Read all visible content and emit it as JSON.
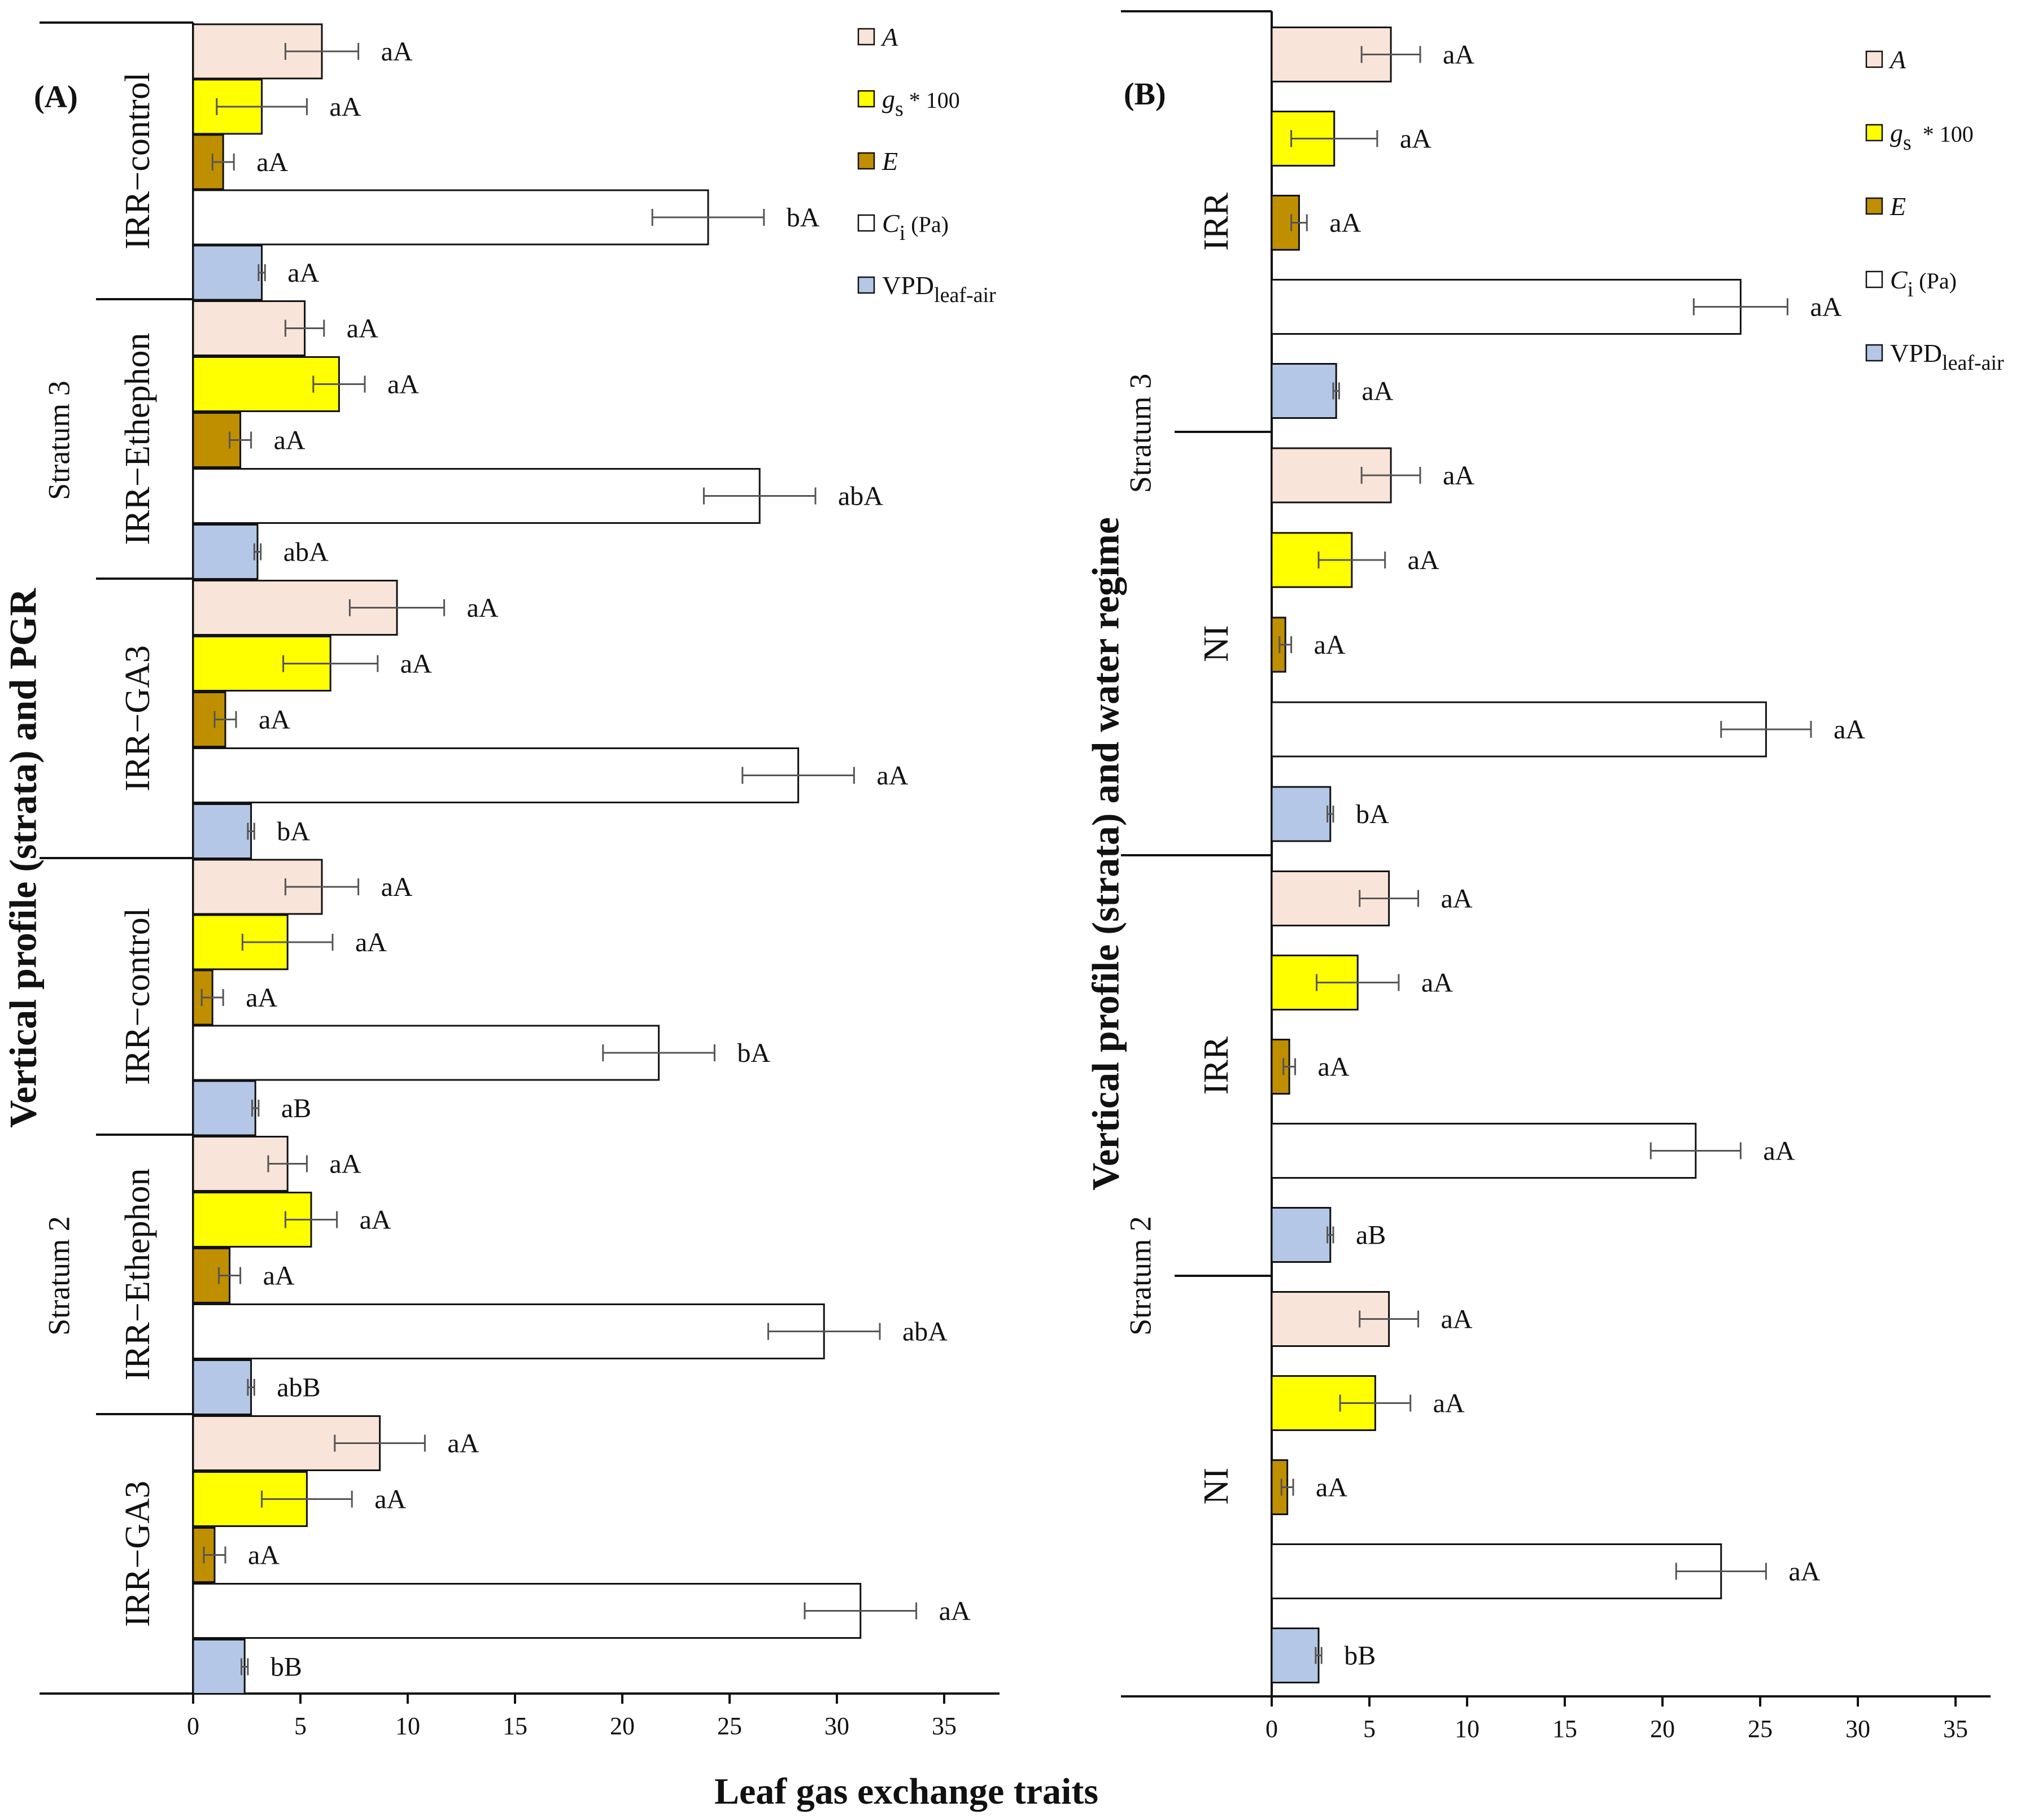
{
  "x_axis_title": "Leaf gas  exchange traits",
  "colors": {
    "A": "#f9e4d9",
    "gs": "#ffff00",
    "E": "#bf8f00",
    "Ci": "#ffffff",
    "VPD": "#b4c7e7",
    "stroke": "#111111",
    "error": "#555555"
  },
  "chart_data": [
    {
      "type": "bar",
      "orientation": "horizontal",
      "panel_label": "(A)",
      "ylabel": "Vertical profile (strata) and PGR",
      "xlabel": "Leaf gas  exchange traits",
      "xlim": [
        0,
        37
      ],
      "xticks": [
        "0",
        "5",
        "10",
        "15",
        "20",
        "25",
        "30",
        "35"
      ],
      "legend": [
        {
          "key": "A",
          "main": "A",
          "sub": ""
        },
        {
          "key": "gs",
          "main": "g",
          "sub": "s",
          "suffix": "* 100"
        },
        {
          "key": "E",
          "main": "E",
          "sub": ""
        },
        {
          "key": "Ci",
          "main": "C",
          "sub": "i",
          "suffix": "(Pa)"
        },
        {
          "key": "VPD",
          "main": "VPD",
          "sub": "leaf-air"
        }
      ],
      "strata": [
        {
          "label": "Stratum 3",
          "groups": 3
        },
        {
          "label": "Stratum 2",
          "groups": 3
        }
      ],
      "groups": [
        {
          "label": "IRR−control",
          "values": [
            6.0,
            3.2,
            1.4,
            24.0,
            3.2
          ],
          "errors": [
            1.7,
            2.1,
            0.5,
            2.6,
            0.15
          ],
          "letters": [
            "aA",
            "aA",
            "aA",
            "bA",
            "aA"
          ]
        },
        {
          "label": "IRR−Ethephon",
          "values": [
            5.2,
            6.8,
            2.2,
            26.4,
            3.0
          ],
          "errors": [
            0.9,
            1.2,
            0.5,
            2.6,
            0.15
          ],
          "letters": [
            "aA",
            "aA",
            "aA",
            "abA",
            "abA"
          ]
        },
        {
          "label": "IRR−GA3",
          "values": [
            9.5,
            6.4,
            1.5,
            28.2,
            2.7
          ],
          "errors": [
            2.2,
            2.2,
            0.5,
            2.6,
            0.15
          ],
          "letters": [
            "aA",
            "aA",
            "aA",
            "aA",
            "bA"
          ]
        },
        {
          "label": "IRR−control",
          "values": [
            6.0,
            4.4,
            0.9,
            21.7,
            2.9
          ],
          "errors": [
            1.7,
            2.1,
            0.5,
            2.6,
            0.15
          ],
          "letters": [
            "aA",
            "aA",
            "aA",
            "bA",
            "aB"
          ]
        },
        {
          "label": "IRR−Ethephon",
          "values": [
            4.4,
            5.5,
            1.7,
            29.4,
            2.7
          ],
          "errors": [
            0.9,
            1.2,
            0.5,
            2.6,
            0.15
          ],
          "letters": [
            "aA",
            "aA",
            "aA",
            "abA",
            "abB"
          ]
        },
        {
          "label": "IRR−GA3",
          "values": [
            8.7,
            5.3,
            1.0,
            31.1,
            2.4
          ],
          "errors": [
            2.1,
            2.1,
            0.5,
            2.6,
            0.15
          ],
          "letters": [
            "aA",
            "aA",
            "aA",
            "aA",
            "bB"
          ]
        }
      ]
    },
    {
      "type": "bar",
      "orientation": "horizontal",
      "panel_label": "(B)",
      "ylabel": "Vertical profile (strata) and water regime",
      "xlabel": "Leaf gas  exchange traits",
      "xlim": [
        0,
        37
      ],
      "xticks": [
        "0",
        "5",
        "10",
        "15",
        "20",
        "25",
        "30",
        "35"
      ],
      "legend": [
        {
          "key": "A",
          "main": "A",
          "sub": ""
        },
        {
          "key": "gs",
          "main": "g",
          "sub": "s",
          "suffix": " * 100"
        },
        {
          "key": "E",
          "main": "E",
          "sub": ""
        },
        {
          "key": "Ci",
          "main": "C",
          "sub": "i",
          "suffix": "(Pa)"
        },
        {
          "key": "VPD",
          "main": "VPD",
          "sub": "leaf-air"
        }
      ],
      "strata": [
        {
          "label": "Stratum 3",
          "groups": 2
        },
        {
          "label": "Stratum 2",
          "groups": 2
        }
      ],
      "groups": [
        {
          "label": "IRR",
          "values": [
            6.1,
            3.2,
            1.4,
            24.0,
            3.3
          ],
          "errors": [
            1.5,
            2.2,
            0.4,
            2.4,
            0.15
          ],
          "letters": [
            "aA",
            "aA",
            "aA",
            "aA",
            "aA"
          ]
        },
        {
          "label": "NI",
          "values": [
            6.1,
            4.1,
            0.7,
            25.3,
            3.0
          ],
          "errors": [
            1.5,
            1.7,
            0.3,
            2.3,
            0.15
          ],
          "letters": [
            "aA",
            "aA",
            "aA",
            "aA",
            "bA"
          ]
        },
        {
          "label": "IRR",
          "values": [
            6.0,
            4.4,
            0.9,
            21.7,
            3.0
          ],
          "errors": [
            1.5,
            2.1,
            0.3,
            2.3,
            0.15
          ],
          "letters": [
            "aA",
            "aA",
            "aA",
            "aA",
            "aB"
          ]
        },
        {
          "label": "NI",
          "values": [
            6.0,
            5.3,
            0.8,
            23.0,
            2.4
          ],
          "errors": [
            1.5,
            1.8,
            0.3,
            2.3,
            0.15
          ],
          "letters": [
            "aA",
            "aA",
            "aA",
            "aA",
            "bB"
          ]
        }
      ]
    }
  ]
}
